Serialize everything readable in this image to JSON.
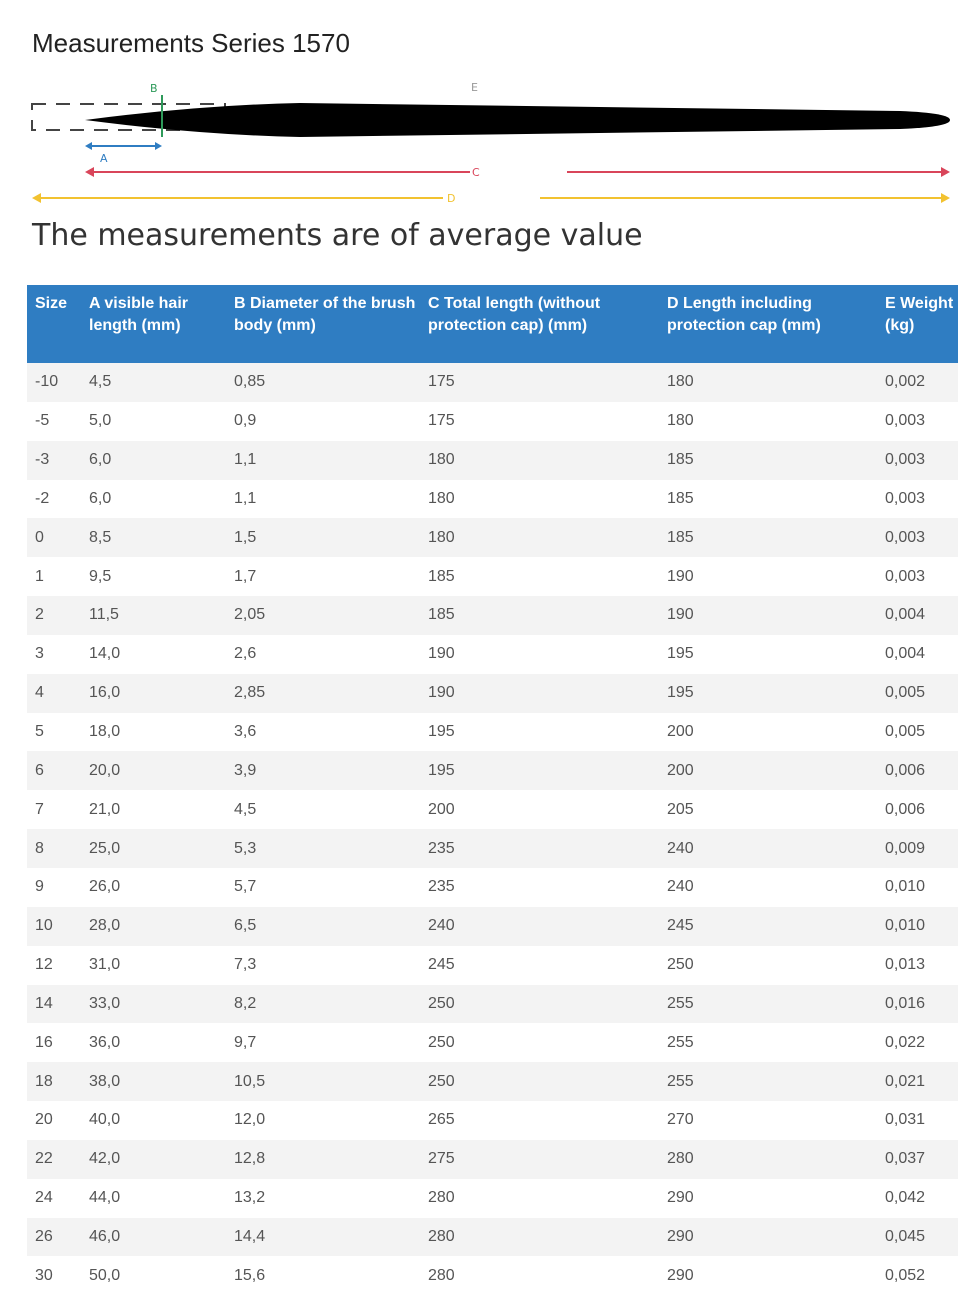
{
  "title": "Measurements Series 1570",
  "diagram": {
    "labels": [
      "A",
      "B",
      "C",
      "D",
      "E"
    ]
  },
  "subtitle": "The measurements are of average value",
  "table": {
    "header": [
      "Size",
      "A visible hair length (mm)",
      "B Diameter of the brush body (mm)",
      "C Total length (without protection cap) (mm)",
      "D Length including protection cap (mm)",
      "E Weight (kg)"
    ],
    "rows": [
      [
        "-10",
        "4,5",
        "0,85",
        "175",
        "180",
        "0,002"
      ],
      [
        "-5",
        "5,0",
        "0,9",
        "175",
        "180",
        "0,003"
      ],
      [
        "-3",
        "6,0",
        "1,1",
        "180",
        "185",
        "0,003"
      ],
      [
        "-2",
        "6,0",
        "1,1",
        "180",
        "185",
        "0,003"
      ],
      [
        "0",
        "8,5",
        "1,5",
        "180",
        "185",
        "0,003"
      ],
      [
        "1",
        "9,5",
        "1,7",
        "185",
        "190",
        "0,003"
      ],
      [
        "2",
        "11,5",
        "2,05",
        "185",
        "190",
        "0,004"
      ],
      [
        "3",
        "14,0",
        "2,6",
        "190",
        "195",
        "0,004"
      ],
      [
        "4",
        "16,0",
        "2,85",
        "190",
        "195",
        "0,005"
      ],
      [
        "5",
        "18,0",
        "3,6",
        "195",
        "200",
        "0,005"
      ],
      [
        "6",
        "20,0",
        "3,9",
        "195",
        "200",
        "0,006"
      ],
      [
        "7",
        "21,0",
        "4,5",
        "200",
        "205",
        "0,006"
      ],
      [
        "8",
        "25,0",
        "5,3",
        "235",
        "240",
        "0,009"
      ],
      [
        "9",
        "26,0",
        "5,7",
        "235",
        "240",
        "0,010"
      ],
      [
        "10",
        "28,0",
        "6,5",
        "240",
        "245",
        "0,010"
      ],
      [
        "12",
        "31,0",
        "7,3",
        "245",
        "250",
        "0,013"
      ],
      [
        "14",
        "33,0",
        "8,2",
        "250",
        "255",
        "0,016"
      ],
      [
        "16",
        "36,0",
        "9,7",
        "250",
        "255",
        "0,022"
      ],
      [
        "18",
        "38,0",
        "10,5",
        "250",
        "255",
        "0,021"
      ],
      [
        "20",
        "40,0",
        "12,0",
        "265",
        "270",
        "0,031"
      ],
      [
        "22",
        "42,0",
        "12,8",
        "275",
        "280",
        "0,037"
      ],
      [
        "24",
        "44,0",
        "13,2",
        "280",
        "290",
        "0,042"
      ],
      [
        "26",
        "46,0",
        "14,4",
        "280",
        "290",
        "0,045"
      ],
      [
        "30",
        "50,0",
        "15,6",
        "280",
        "290",
        "0,052"
      ]
    ]
  }
}
